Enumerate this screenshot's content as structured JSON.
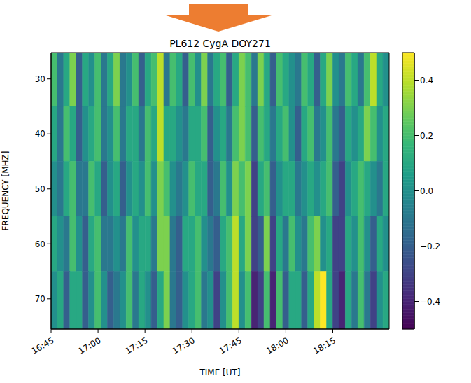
{
  "chart_data": {
    "type": "heatmap",
    "title": "PL612 CygA DOY271",
    "x_label": "TIME [UT]",
    "y_label": "FREQUENCY [MHZ]",
    "xlim": [
      1005,
      1113
    ],
    "xticks": [
      {
        "value": 1005,
        "label": "16:45"
      },
      {
        "value": 1020,
        "label": "17:00"
      },
      {
        "value": 1035,
        "label": "17:15"
      },
      {
        "value": 1050,
        "label": "17:30"
      },
      {
        "value": 1065,
        "label": "17:45"
      },
      {
        "value": 1080,
        "label": "18:00"
      },
      {
        "value": 1095,
        "label": "18:15"
      }
    ],
    "ylim": [
      75.5,
      25.2
    ],
    "yticks": [
      30,
      40,
      50,
      60,
      70
    ],
    "cells": {
      "x_edges": [
        1005,
        1007,
        1009,
        1011,
        1013,
        1015,
        1017,
        1019,
        1021,
        1023,
        1025,
        1027,
        1029,
        1031,
        1033,
        1035,
        1037,
        1039,
        1041,
        1043,
        1045,
        1047,
        1049,
        1051,
        1053,
        1055,
        1057,
        1059,
        1061,
        1063,
        1065,
        1067,
        1069,
        1071,
        1073,
        1075,
        1077,
        1079,
        1081,
        1083,
        1085,
        1087,
        1089,
        1091,
        1093,
        1095,
        1097,
        1099,
        1101,
        1103,
        1105,
        1107,
        1109,
        1111,
        1113
      ],
      "y_edges": [
        25.2,
        35,
        45,
        55,
        65,
        75.5
      ],
      "values": [
        [
          0.2,
          -0.1,
          0.1,
          0.3,
          -0.2,
          0.1,
          0.0,
          0.2,
          -0.1,
          0.1,
          0.3,
          -0.1,
          0.0,
          0.2,
          -0.2,
          0.1,
          0.2,
          0.4,
          -0.1,
          0.2,
          0.1,
          -0.2,
          0.2,
          0.0,
          0.3,
          -0.1,
          0.1,
          0.2,
          -0.2,
          0.1,
          0.3,
          0.2,
          -0.1,
          0.3,
          0.1,
          -0.2,
          0.2,
          0.1,
          0.0,
          -0.1,
          0.2,
          0.1,
          -0.2,
          0.1,
          0.3,
          0.0,
          -0.1,
          0.2,
          0.1,
          -0.1,
          0.2,
          0.4,
          0.1,
          0.0
        ],
        [
          0.1,
          -0.1,
          0.2,
          0.1,
          -0.2,
          0.0,
          0.1,
          0.2,
          -0.1,
          0.0,
          0.2,
          -0.1,
          0.1,
          0.1,
          -0.1,
          0.2,
          0.1,
          0.4,
          0.1,
          0.1,
          0.0,
          -0.1,
          0.1,
          0.1,
          0.2,
          -0.2,
          0.0,
          0.1,
          -0.1,
          0.2,
          0.3,
          0.2,
          -0.2,
          0.2,
          0.1,
          -0.1,
          0.1,
          0.2,
          0.0,
          -0.2,
          0.1,
          0.2,
          -0.1,
          0.0,
          0.2,
          -0.1,
          -0.2,
          0.1,
          0.0,
          0.1,
          0.3,
          0.2,
          0.0,
          0.1
        ],
        [
          0.0,
          -0.1,
          0.1,
          0.2,
          -0.1,
          -0.1,
          0.2,
          0.1,
          -0.2,
          0.0,
          0.1,
          -0.2,
          0.0,
          0.1,
          0.0,
          0.2,
          0.0,
          0.3,
          0.2,
          0.0,
          -0.1,
          0.0,
          0.2,
          0.1,
          0.1,
          -0.2,
          -0.1,
          0.2,
          0.0,
          0.3,
          0.2,
          0.3,
          -0.3,
          0.1,
          0.2,
          -0.2,
          0.0,
          0.1,
          0.1,
          -0.1,
          0.0,
          0.1,
          0.0,
          0.1,
          0.2,
          -0.2,
          -0.3,
          0.0,
          0.1,
          0.2,
          0.1,
          0.0,
          -0.1,
          0.1
        ],
        [
          0.1,
          0.0,
          -0.1,
          0.2,
          0.0,
          -0.2,
          0.1,
          0.2,
          -0.1,
          -0.1,
          0.0,
          -0.1,
          0.2,
          0.0,
          0.1,
          0.1,
          -0.1,
          0.3,
          0.3,
          -0.1,
          -0.2,
          0.1,
          0.1,
          0.2,
          0.0,
          -0.1,
          -0.2,
          0.1,
          0.2,
          0.4,
          0.1,
          0.3,
          -0.3,
          -0.2,
          0.3,
          -0.3,
          0.1,
          -0.1,
          0.2,
          0.0,
          -0.1,
          0.2,
          0.3,
          0.0,
          0.1,
          -0.3,
          -0.3,
          0.1,
          0.0,
          0.2,
          0.0,
          -0.2,
          0.1,
          0.0
        ],
        [
          0.0,
          0.1,
          -0.2,
          0.1,
          0.1,
          -0.2,
          0.0,
          0.2,
          0.0,
          -0.2,
          -0.1,
          0.0,
          0.2,
          -0.1,
          0.1,
          0.0,
          -0.2,
          0.1,
          0.3,
          -0.1,
          -0.2,
          0.0,
          0.1,
          0.2,
          -0.1,
          0.0,
          -0.3,
          0.0,
          0.2,
          0.4,
          0.0,
          0.2,
          -0.4,
          -0.3,
          0.2,
          -0.4,
          0.2,
          -0.2,
          0.1,
          0.1,
          -0.2,
          0.1,
          0.4,
          0.5,
          0.1,
          -0.3,
          -0.4,
          0.1,
          -0.1,
          0.2,
          -0.1,
          -0.3,
          0.0,
          0.1
        ]
      ]
    },
    "colorbar": {
      "range": [
        -0.5,
        0.5
      ],
      "ticks": [
        {
          "value": -0.4,
          "label": "−0.4"
        },
        {
          "value": -0.2,
          "label": "−0.2"
        },
        {
          "value": 0,
          "label": "0.0"
        },
        0.2,
        0.4
      ]
    }
  }
}
